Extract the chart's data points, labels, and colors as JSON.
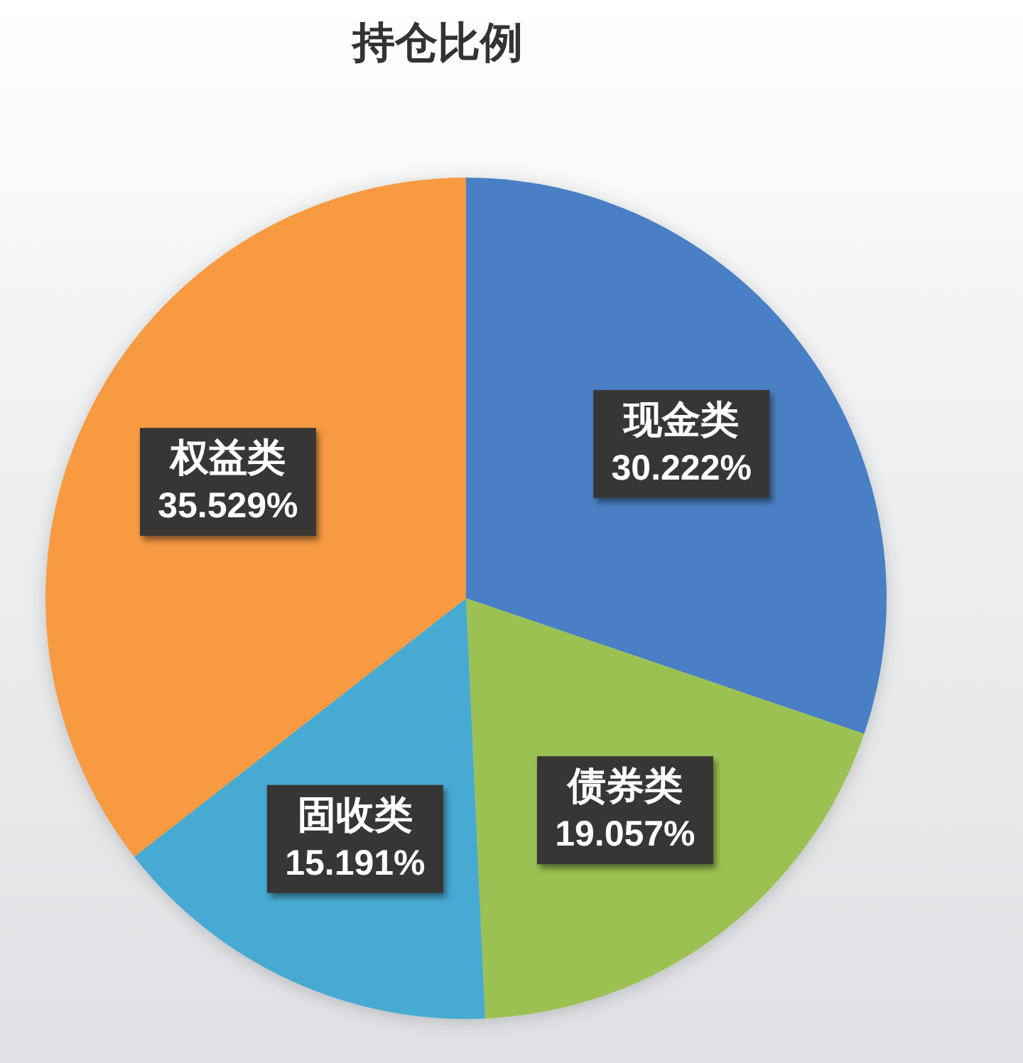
{
  "chart_data": {
    "type": "pie",
    "title": "持仓比例",
    "categories": [
      "现金类",
      "债券类",
      "固收类",
      "权益类"
    ],
    "values": [
      30.222,
      19.057,
      15.191,
      35.529
    ],
    "colors": [
      "#4a7fc4",
      "#9bc152",
      "#46aad2",
      "#f79a43"
    ],
    "value_labels": [
      "30.222%",
      "19.057%",
      "15.191%",
      "35.529%"
    ]
  }
}
